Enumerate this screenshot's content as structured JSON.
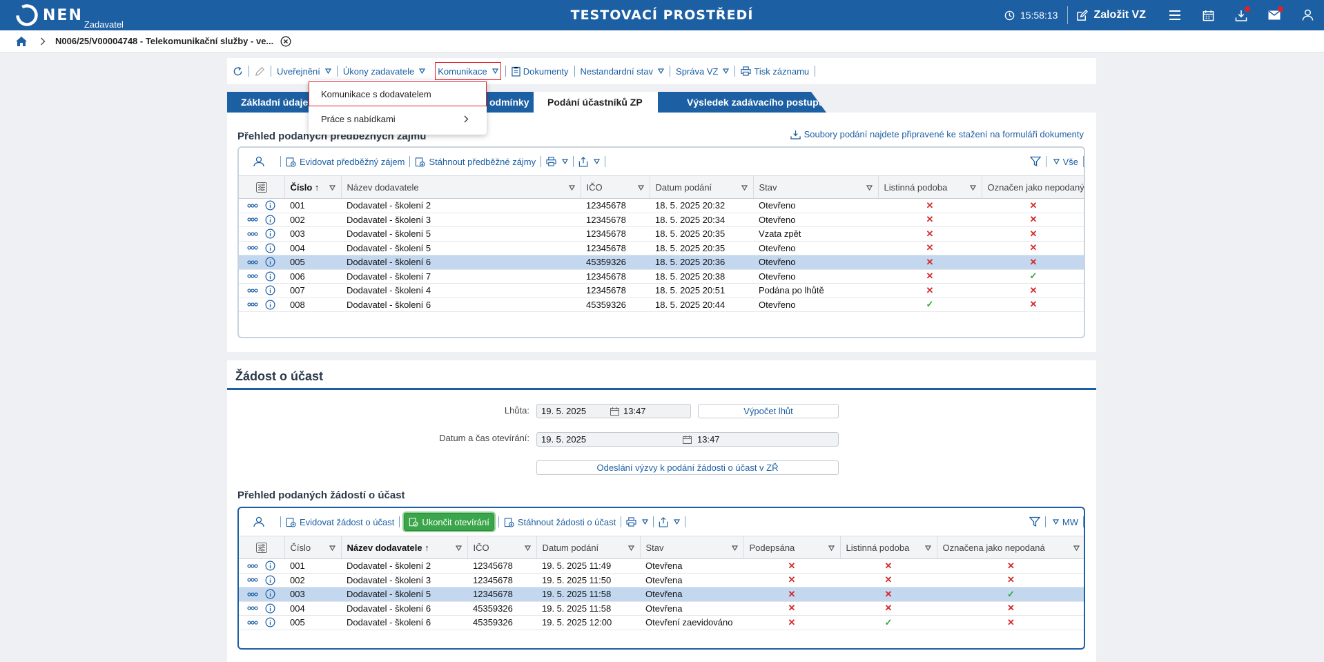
{
  "header": {
    "logo_text": "NEN",
    "logo_sub": "Zadavatel",
    "env_title": "TESTOVACÍ PROSTŘEDÍ",
    "clock": "15:58:13",
    "create_label": "Založit VZ"
  },
  "breadcrumb": {
    "text": "N006/25/V00004748 - Telekomunikační služby - ve..."
  },
  "toolbar": {
    "items": [
      "Uveřejnění",
      "Úkony zadavatele",
      "Komunikace",
      "Dokumenty",
      "Nestandardní stav",
      "Správa VZ",
      "Tisk záznamu"
    ]
  },
  "dropdown": {
    "items": [
      "Komunikace s dodavatelem",
      "Práce s nabídkami"
    ]
  },
  "tabs": [
    "Základní údaje",
    "odmínky",
    "Podání účastníků ZP",
    "Výsledek zadávacího postupu"
  ],
  "section1": {
    "title": "Přehled podaných předběžných zájmů",
    "link": "Soubory podání najdete připravené ke stažení na formuláři dokumenty",
    "grid_toolbar": [
      "Evidovat předběžný zájem",
      "Stáhnout předběžné zájmy"
    ],
    "filter_label": "Vše",
    "columns": [
      "Číslo",
      "Název dodavatele",
      "IČO",
      "Datum podání",
      "Stav",
      "Listinná podoba",
      "Označen jako nepodaný"
    ],
    "rows": [
      {
        "cislo": "001",
        "nazev": "Dodavatel - školení 2",
        "ico": "12345678",
        "datum": "18. 5. 2025 20:32",
        "stav": "Otevřeno",
        "listinna": "✕",
        "nepodany": "✕"
      },
      {
        "cislo": "002",
        "nazev": "Dodavatel - školení 3",
        "ico": "12345678",
        "datum": "18. 5. 2025 20:34",
        "stav": "Otevřeno",
        "listinna": "✕",
        "nepodany": "✕"
      },
      {
        "cislo": "003",
        "nazev": "Dodavatel - školení 5",
        "ico": "12345678",
        "datum": "18. 5. 2025 20:35",
        "stav": "Vzata zpět",
        "listinna": "✕",
        "nepodany": "✕"
      },
      {
        "cislo": "004",
        "nazev": "Dodavatel - školení 5",
        "ico": "12345678",
        "datum": "18. 5. 2025 20:35",
        "stav": "Otevřeno",
        "listinna": "✕",
        "nepodany": "✕"
      },
      {
        "cislo": "005",
        "nazev": "Dodavatel - školení 6",
        "ico": "45359326",
        "datum": "18. 5. 2025 20:36",
        "stav": "Otevřeno",
        "listinna": "✕",
        "nepodany": "✕"
      },
      {
        "cislo": "006",
        "nazev": "Dodavatel - školení 7",
        "ico": "12345678",
        "datum": "18. 5. 2025 20:38",
        "stav": "Otevřeno",
        "listinna": "✕",
        "nepodany": "✓"
      },
      {
        "cislo": "007",
        "nazev": "Dodavatel - školení 4",
        "ico": "12345678",
        "datum": "18. 5. 2025 20:51",
        "stav": "Podána po lhůtě",
        "listinna": "✕",
        "nepodany": "✕"
      },
      {
        "cislo": "008",
        "nazev": "Dodavatel - školení 6",
        "ico": "45359326",
        "datum": "18. 5. 2025 20:44",
        "stav": "Otevřeno",
        "listinna": "✓",
        "nepodany": "✕"
      }
    ]
  },
  "section2": {
    "title": "Žádost o účast",
    "lhuta_label": "Lhůta:",
    "lhuta_date": "19. 5. 2025",
    "lhuta_time": "13:47",
    "vypocet_label": "Výpočet lhůt",
    "otevirani_label": "Datum a čas otevírání:",
    "otevirani_date": "19. 5. 2025",
    "otevirani_time": "13:47",
    "odeslani_label": "Odeslání výzvy k podání žádosti o účast v ZŘ"
  },
  "section3": {
    "title": "Přehled podaných žádostí o účast",
    "grid_toolbar": [
      "Evidovat žádost o účast",
      "Ukončit otevírání",
      "Stáhnout žádosti o účast"
    ],
    "filter_label": "MW",
    "columns": [
      "Číslo",
      "Název dodavatele",
      "IČO",
      "Datum podání",
      "Stav",
      "Podepsána",
      "Listinná podoba",
      "Označena jako nepodaná"
    ],
    "rows": [
      {
        "cislo": "001",
        "nazev": "Dodavatel - školení 2",
        "ico": "12345678",
        "datum": "19. 5. 2025 11:49",
        "stav": "Otevřena",
        "podepsana": "✕",
        "listinna": "✕",
        "nepodana": "✕"
      },
      {
        "cislo": "002",
        "nazev": "Dodavatel - školení 3",
        "ico": "12345678",
        "datum": "19. 5. 2025 11:50",
        "stav": "Otevřena",
        "podepsana": "✕",
        "listinna": "✕",
        "nepodana": "✕"
      },
      {
        "cislo": "003",
        "nazev": "Dodavatel - školení 5",
        "ico": "12345678",
        "datum": "19. 5. 2025 11:58",
        "stav": "Otevřena",
        "podepsana": "✕",
        "listinna": "✕",
        "nepodana": "✓"
      },
      {
        "cislo": "004",
        "nazev": "Dodavatel - školení 6",
        "ico": "45359326",
        "datum": "19. 5. 2025 11:58",
        "stav": "Otevřena",
        "podepsana": "✕",
        "listinna": "✕",
        "nepodana": "✕"
      },
      {
        "cislo": "005",
        "nazev": "Dodavatel - školení 6",
        "ico": "45359326",
        "datum": "19. 5. 2025 12:00",
        "stav": "Otevření zaevidováno",
        "podepsana": "✕",
        "listinna": "✓",
        "nepodana": "✕"
      }
    ]
  },
  "colors": {
    "brand": "#1c5fa3",
    "selected_row": "#c3d7ef",
    "cross": "#d42a2a",
    "check": "#2faa3a",
    "green_button": "#3aa54a"
  }
}
